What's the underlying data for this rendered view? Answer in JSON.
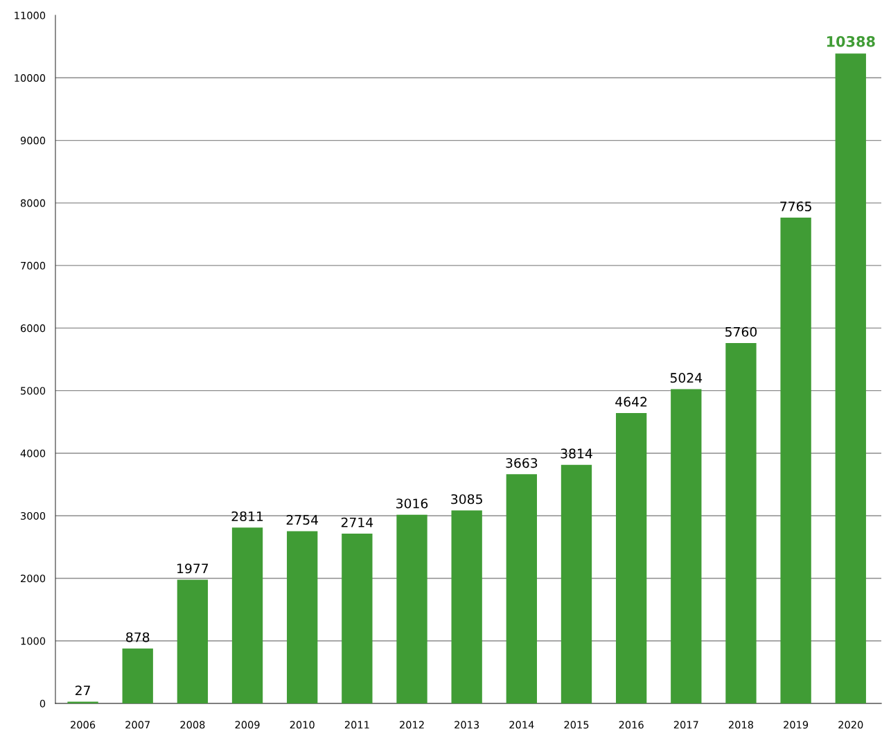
{
  "chart_data": {
    "type": "bar",
    "categories": [
      "2006",
      "2007",
      "2008",
      "2009",
      "2010",
      "2011",
      "2012",
      "2013",
      "2014",
      "2015",
      "2016",
      "2017",
      "2018",
      "2019",
      "2020"
    ],
    "values": [
      27,
      878,
      1977,
      2811,
      2754,
      2714,
      3016,
      3085,
      3663,
      3814,
      4642,
      5024,
      5760,
      7765,
      10388
    ],
    "color": "#409c35",
    "ylim": [
      0,
      11000
    ],
    "yticks": [
      0,
      1000,
      2000,
      3000,
      4000,
      5000,
      6000,
      7000,
      8000,
      9000,
      10000,
      11000
    ],
    "grid": "y",
    "data_labels": true
  }
}
